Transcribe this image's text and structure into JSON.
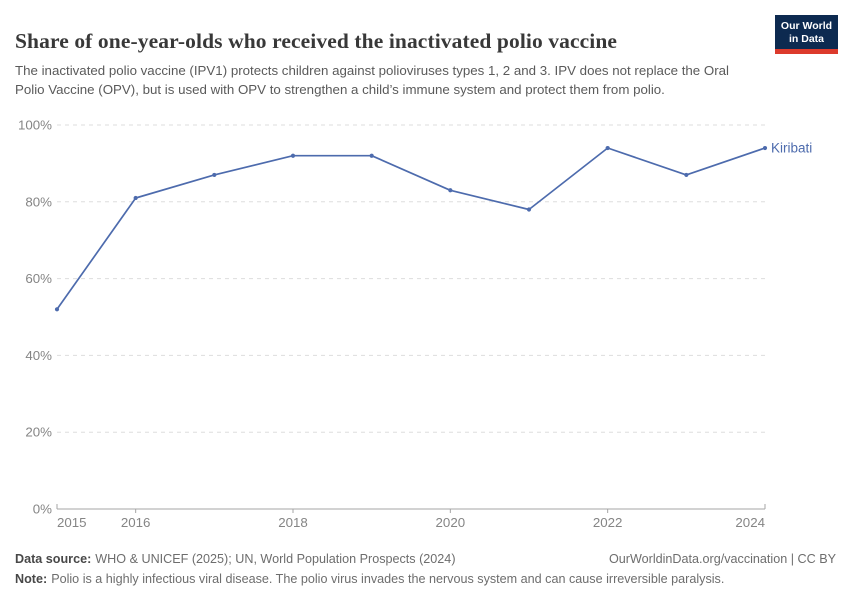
{
  "header": {
    "title": "Share of one-year-olds who received the inactivated polio vaccine",
    "subtitle": "The inactivated polio vaccine (IPV1) protects children against polioviruses types 1, 2 and 3. IPV does not replace the Oral Polio Vaccine (OPV), but is used with OPV to strengthen a child’s immune system and protect them from polio.",
    "logo": {
      "line1": "Our World",
      "line2": "in Data",
      "bg_color": "#0d2a50",
      "bar_color": "#dc3a2c"
    }
  },
  "chart_data": {
    "type": "line",
    "title": "Share of one-year-olds who received the inactivated polio vaccine",
    "x": [
      2015,
      2016,
      2017,
      2018,
      2019,
      2020,
      2021,
      2022,
      2023,
      2024
    ],
    "series": [
      {
        "name": "Kiribati",
        "color": "#4d6bad",
        "values": [
          52,
          81,
          87,
          92,
          92,
          83,
          78,
          94,
          87,
          94
        ]
      }
    ],
    "ylim": [
      0,
      100
    ],
    "yticks": [
      0,
      20,
      40,
      60,
      80,
      100
    ],
    "ytick_suffix": "%",
    "xtick_labels": [
      2015,
      2016,
      2018,
      2020,
      2022,
      2024
    ],
    "grid": "horizontal-dashed",
    "legend": "end-of-line-label",
    "end_label": "Kiribati"
  },
  "footer": {
    "source_label": "Data source:",
    "source_text": "WHO & UNICEF (2025); UN, World Population Prospects (2024)",
    "link_text": "OurWorldinData.org/vaccination | CC BY",
    "note_label": "Note:",
    "note_text": "Polio is a highly infectious viral disease. The polio virus invades the nervous system and can cause irreversible paralysis."
  }
}
